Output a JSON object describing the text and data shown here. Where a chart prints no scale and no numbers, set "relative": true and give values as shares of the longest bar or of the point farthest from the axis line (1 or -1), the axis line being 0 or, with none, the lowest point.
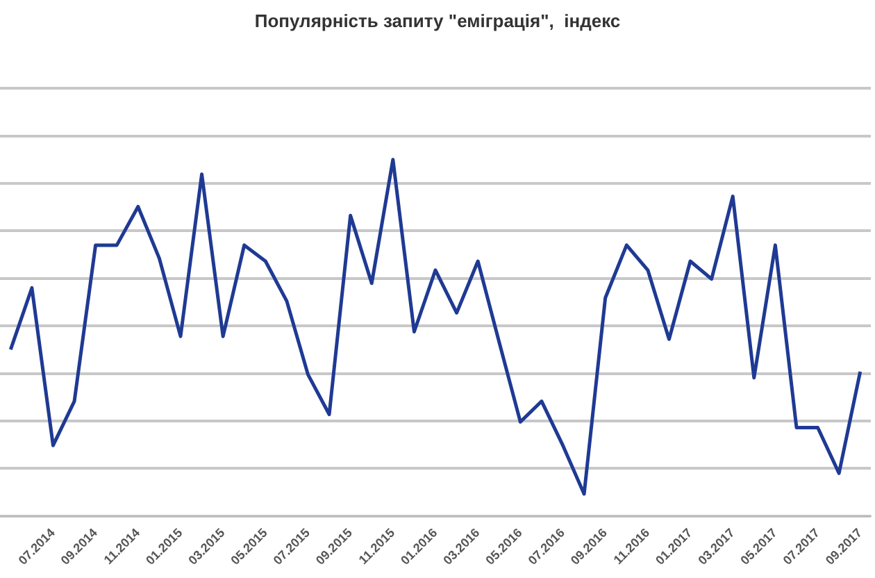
{
  "chart_data": {
    "type": "line",
    "title": "Популярність запиту \"еміграція\",  індекс",
    "relative": true,
    "grid": "y",
    "legend": false,
    "marker": "none",
    "line_style": "solid",
    "categories": [
      null,
      null,
      "07.2014",
      null,
      "09.2014",
      null,
      "11.2014",
      null,
      "01.2015",
      null,
      "03.2015",
      null,
      "05.2015",
      null,
      "07.2015",
      null,
      "09.2015",
      null,
      "11.2015",
      null,
      "01.2016",
      null,
      "03.2016",
      null,
      "05.2016",
      null,
      "07.2016",
      null,
      "09.2016",
      null,
      "11.2016",
      null,
      "01.2017",
      null,
      "03.2017",
      null,
      "05.2017",
      null,
      "07.2017",
      null,
      "09.2017"
    ],
    "series": [
      {
        "color": "#1f3a93",
        "values": [
          0.467,
          0.64,
          0.198,
          0.322,
          0.76,
          0.76,
          0.868,
          0.723,
          0.504,
          0.959,
          0.504,
          0.76,
          0.715,
          0.603,
          0.397,
          0.285,
          0.843,
          0.653,
          1,
          0.517,
          0.69,
          0.57,
          0.715,
          0.488,
          0.264,
          0.322,
          0.198,
          0.062,
          0.612,
          0.76,
          0.69,
          0.496,
          0.715,
          0.665,
          0.897,
          0.388,
          0.76,
          0.248,
          0.248,
          0.12,
          0.405
        ]
      }
    ]
  }
}
